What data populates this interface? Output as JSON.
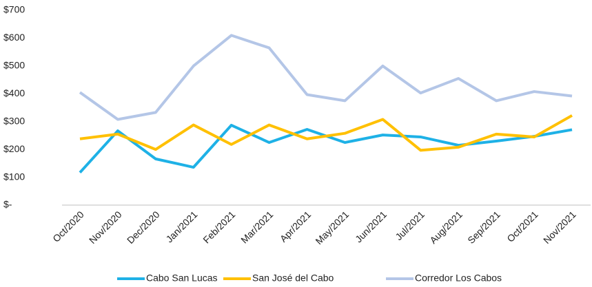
{
  "chart_data": {
    "type": "line",
    "categories": [
      "Oct/2020",
      "Nov/2020",
      "Dec/2020",
      "Jan/2021",
      "Feb/2021",
      "Mar/2021",
      "Apr/2021",
      "May/2021",
      "Jun/2021",
      "Jul/2021",
      "Aug/2021",
      "Sep/2021",
      "Oct/2021",
      "Nov/2021"
    ],
    "series": [
      {
        "name": "Cabo San Lucas",
        "color": "#1eb1e6",
        "values": [
          117,
          267,
          166,
          136,
          287,
          225,
          272,
          225,
          252,
          245,
          215,
          230,
          247,
          271
        ]
      },
      {
        "name": "San José del Cabo",
        "color": "#ffc000",
        "values": [
          238,
          255,
          200,
          288,
          218,
          288,
          238,
          258,
          308,
          197,
          208,
          255,
          245,
          322
        ]
      },
      {
        "name": "Corredor Los Cabos",
        "color": "#b4c6e7",
        "values": [
          405,
          308,
          333,
          500,
          610,
          565,
          397,
          375,
          500,
          403,
          455,
          375,
          408,
          392
        ]
      }
    ],
    "ylim": [
      0,
      700
    ],
    "yticks": [
      {
        "value": 0,
        "label": "$-"
      },
      {
        "value": 100,
        "label": "$100"
      },
      {
        "value": 200,
        "label": "$200"
      },
      {
        "value": 300,
        "label": "$300"
      },
      {
        "value": 400,
        "label": "$400"
      },
      {
        "value": 500,
        "label": "$500"
      },
      {
        "value": 600,
        "label": "$600"
      },
      {
        "value": 700,
        "label": "$700"
      }
    ],
    "grid": false,
    "legend": "bottom"
  }
}
